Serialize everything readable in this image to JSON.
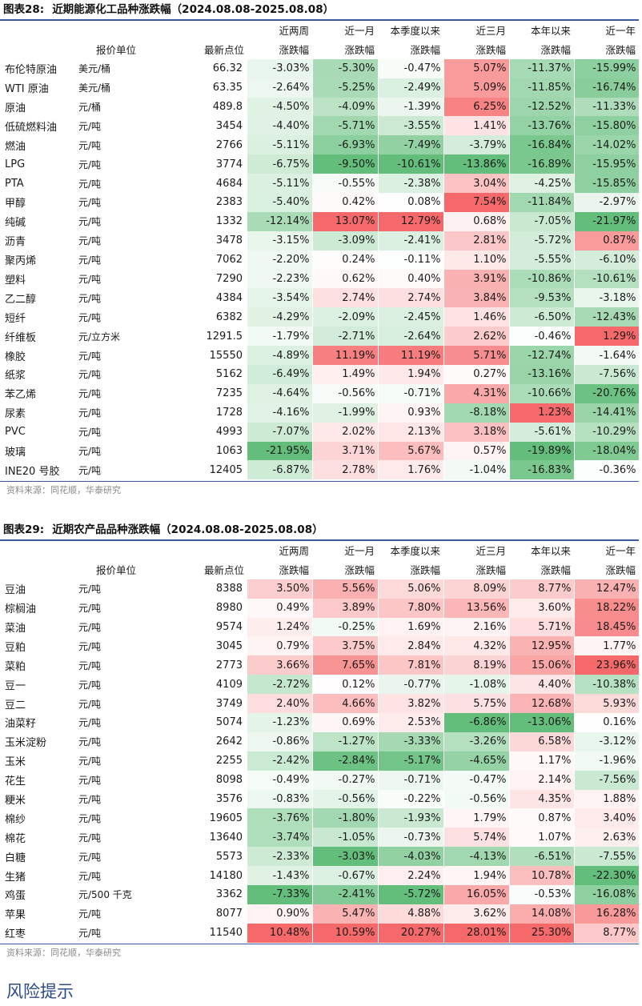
{
  "tables": [
    {
      "title": {
        "label": "图表28:",
        "text": "近期能源化工品种涨跌幅（2024.08.08-2025.08.08）"
      },
      "headers": {
        "row1": [
          "近两周",
          "近一月",
          "本季度以来",
          "近三月",
          "本年以来",
          "近一年"
        ],
        "row2": [
          "涨跌幅",
          "涨跌幅",
          "涨跌幅",
          "涨跌幅",
          "涨跌幅",
          "涨跌幅"
        ],
        "unit": "报价单位",
        "price": "最新点位"
      },
      "rows": [
        {
          "name": "布伦特原油",
          "unit": "美元/桶",
          "price": "66.32",
          "values": [
            "-3.03%",
            "-5.30%",
            "-0.47%",
            "5.07%",
            "-11.37%",
            "-15.99%"
          ]
        },
        {
          "name": "WTI 原油",
          "unit": "美元/桶",
          "price": "63.35",
          "values": [
            "-2.64%",
            "-5.25%",
            "-2.49%",
            "5.09%",
            "-11.85%",
            "-16.74%"
          ]
        },
        {
          "name": "原油",
          "unit": "元/桶",
          "price": "489.8",
          "values": [
            "-4.50%",
            "-4.09%",
            "-1.39%",
            "6.25%",
            "-12.52%",
            "-11.33%"
          ]
        },
        {
          "name": "低硫燃料油",
          "unit": "元/吨",
          "price": "3454",
          "values": [
            "-4.40%",
            "-5.71%",
            "-3.55%",
            "1.41%",
            "-13.76%",
            "-15.80%"
          ]
        },
        {
          "name": "燃油",
          "unit": "元/吨",
          "price": "2766",
          "values": [
            "-5.11%",
            "-6.93%",
            "-7.49%",
            "-3.79%",
            "-16.84%",
            "-14.02%"
          ]
        },
        {
          "name": "LPG",
          "unit": "元/吨",
          "price": "3774",
          "values": [
            "-6.75%",
            "-9.50%",
            "-10.61%",
            "-13.86%",
            "-16.89%",
            "-15.95%"
          ]
        },
        {
          "name": "PTA",
          "unit": "元/吨",
          "price": "4684",
          "values": [
            "-5.11%",
            "-0.55%",
            "-2.38%",
            "3.04%",
            "-4.25%",
            "-15.85%"
          ]
        },
        {
          "name": "甲醇",
          "unit": "元/吨",
          "price": "2383",
          "values": [
            "-5.40%",
            "0.42%",
            "0.08%",
            "7.54%",
            "-11.84%",
            "-2.97%"
          ]
        },
        {
          "name": "纯碱",
          "unit": "元/吨",
          "price": "1332",
          "values": [
            "-12.14%",
            "13.07%",
            "12.79%",
            "0.68%",
            "-7.05%",
            "-21.97%"
          ]
        },
        {
          "name": "沥青",
          "unit": "元/吨",
          "price": "3478",
          "values": [
            "-3.15%",
            "-3.09%",
            "-2.41%",
            "2.81%",
            "-5.72%",
            "0.87%"
          ]
        },
        {
          "name": "聚丙烯",
          "unit": "元/吨",
          "price": "7062",
          "values": [
            "-2.20%",
            "0.24%",
            "-0.11%",
            "1.10%",
            "-5.55%",
            "-6.10%"
          ]
        },
        {
          "name": "塑料",
          "unit": "元/吨",
          "price": "7290",
          "values": [
            "-2.23%",
            "0.62%",
            "0.40%",
            "3.91%",
            "-10.86%",
            "-10.61%"
          ]
        },
        {
          "name": "乙二醇",
          "unit": "元/吨",
          "price": "4384",
          "values": [
            "-3.54%",
            "2.74%",
            "2.74%",
            "3.84%",
            "-9.53%",
            "-3.18%"
          ]
        },
        {
          "name": "短纤",
          "unit": "元/吨",
          "price": "6382",
          "values": [
            "-4.29%",
            "-2.09%",
            "-2.45%",
            "1.46%",
            "-6.50%",
            "-12.43%"
          ]
        },
        {
          "name": "纤维板",
          "unit": "元/立方米",
          "price": "1291.5",
          "values": [
            "-1.79%",
            "-2.71%",
            "-2.64%",
            "2.62%",
            "-0.46%",
            "1.29%"
          ]
        },
        {
          "name": "橡胶",
          "unit": "元/吨",
          "price": "15550",
          "values": [
            "-4.89%",
            "11.19%",
            "11.19%",
            "5.71%",
            "-12.74%",
            "-1.64%"
          ]
        },
        {
          "name": "纸浆",
          "unit": "元/吨",
          "price": "5162",
          "values": [
            "-6.49%",
            "1.49%",
            "1.94%",
            "0.27%",
            "-13.16%",
            "-7.56%"
          ]
        },
        {
          "name": "苯乙烯",
          "unit": "元/吨",
          "price": "7235",
          "values": [
            "-4.64%",
            "-0.56%",
            "-0.71%",
            "4.31%",
            "-10.66%",
            "-20.76%"
          ]
        },
        {
          "name": "尿素",
          "unit": "元/吨",
          "price": "1728",
          "values": [
            "-4.16%",
            "-1.99%",
            "0.93%",
            "-8.18%",
            "1.23%",
            "-14.41%"
          ]
        },
        {
          "name": "PVC",
          "unit": "元/吨",
          "price": "4993",
          "values": [
            "-7.07%",
            "2.02%",
            "2.13%",
            "3.18%",
            "-5.61%",
            "-10.29%"
          ]
        },
        {
          "name": "玻璃",
          "unit": "元/吨",
          "price": "1063",
          "values": [
            "-21.95%",
            "3.71%",
            "5.67%",
            "0.57%",
            "-19.89%",
            "-18.04%"
          ]
        },
        {
          "name": "INE20 号胶",
          "unit": "元/吨",
          "price": "12405",
          "values": [
            "-6.87%",
            "2.78%",
            "1.76%",
            "-1.04%",
            "-16.83%",
            "-0.36%"
          ]
        }
      ],
      "source": "资料来源：同花顺，华泰研究"
    },
    {
      "title": {
        "label": "图表29:",
        "text": "近期农产品品种涨跌幅（2024.08.08-2025.08.08）"
      },
      "headers": {
        "row1": [
          "近两周",
          "近一月",
          "本季度以来",
          "近三月",
          "本年以来",
          "近一年"
        ],
        "row2": [
          "涨跌幅",
          "涨跌幅",
          "涨跌幅",
          "涨跌幅",
          "涨跌幅",
          "涨跌幅"
        ],
        "unit": "报价单位",
        "price": "最新点位"
      },
      "rows": [
        {
          "name": "豆油",
          "unit": "元/吨",
          "price": "8388",
          "values": [
            "3.50%",
            "5.56%",
            "5.06%",
            "8.09%",
            "8.77%",
            "12.47%"
          ]
        },
        {
          "name": "棕榈油",
          "unit": "元/吨",
          "price": "8980",
          "values": [
            "0.49%",
            "3.89%",
            "7.80%",
            "13.56%",
            "3.60%",
            "18.22%"
          ]
        },
        {
          "name": "菜油",
          "unit": "元/吨",
          "price": "9574",
          "values": [
            "1.24%",
            "-0.25%",
            "1.69%",
            "2.16%",
            "5.71%",
            "18.45%"
          ]
        },
        {
          "name": "豆粕",
          "unit": "元/吨",
          "price": "3045",
          "values": [
            "0.79%",
            "3.75%",
            "2.84%",
            "4.32%",
            "12.95%",
            "1.77%"
          ]
        },
        {
          "name": "菜粕",
          "unit": "元/吨",
          "price": "2773",
          "values": [
            "3.66%",
            "7.65%",
            "7.81%",
            "8.19%",
            "15.06%",
            "23.96%"
          ]
        },
        {
          "name": "豆一",
          "unit": "元/吨",
          "price": "4109",
          "values": [
            "-2.72%",
            "0.12%",
            "-0.77%",
            "-1.08%",
            "4.40%",
            "-10.38%"
          ]
        },
        {
          "name": "豆二",
          "unit": "元/吨",
          "price": "3749",
          "values": [
            "2.40%",
            "4.66%",
            "3.82%",
            "5.75%",
            "12.68%",
            "5.93%"
          ]
        },
        {
          "name": "油菜籽",
          "unit": "元/吨",
          "price": "5074",
          "values": [
            "-1.23%",
            "0.69%",
            "2.53%",
            "-6.86%",
            "-13.06%",
            "0.16%"
          ]
        },
        {
          "name": "玉米淀粉",
          "unit": "元/吨",
          "price": "2642",
          "values": [
            "-0.86%",
            "-1.27%",
            "-3.33%",
            "-3.26%",
            "6.58%",
            "-3.12%"
          ]
        },
        {
          "name": "玉米",
          "unit": "元/吨",
          "price": "2255",
          "values": [
            "-2.42%",
            "-2.84%",
            "-5.17%",
            "-4.65%",
            "1.17%",
            "-1.96%"
          ]
        },
        {
          "name": "花生",
          "unit": "元/吨",
          "price": "8098",
          "values": [
            "-0.49%",
            "-0.27%",
            "-0.71%",
            "-0.47%",
            "2.14%",
            "-7.56%"
          ]
        },
        {
          "name": "粳米",
          "unit": "元/吨",
          "price": "3576",
          "values": [
            "-0.83%",
            "-0.56%",
            "-0.22%",
            "-0.56%",
            "4.35%",
            "1.88%"
          ]
        },
        {
          "name": "棉纱",
          "unit": "元/吨",
          "price": "19605",
          "values": [
            "-3.76%",
            "-1.80%",
            "-1.93%",
            "1.79%",
            "0.87%",
            "3.40%"
          ]
        },
        {
          "name": "棉花",
          "unit": "元/吨",
          "price": "13640",
          "values": [
            "-3.74%",
            "-1.05%",
            "-0.73%",
            "5.74%",
            "1.07%",
            "2.63%"
          ]
        },
        {
          "name": "白糖",
          "unit": "元/吨",
          "price": "5573",
          "values": [
            "-2.33%",
            "-3.03%",
            "-4.03%",
            "-4.13%",
            "-6.51%",
            "-7.55%"
          ]
        },
        {
          "name": "生猪",
          "unit": "元/吨",
          "price": "14180",
          "values": [
            "-1.43%",
            "-0.67%",
            "2.24%",
            "1.94%",
            "10.78%",
            "-22.30%"
          ]
        },
        {
          "name": "鸡蛋",
          "unit": "元/500 千克",
          "price": "3362",
          "values": [
            "-7.33%",
            "-2.41%",
            "-5.72%",
            "16.05%",
            "-0.53%",
            "-16.08%"
          ]
        },
        {
          "name": "苹果",
          "unit": "元/吨",
          "price": "8077",
          "values": [
            "0.90%",
            "5.47%",
            "4.88%",
            "3.62%",
            "14.08%",
            "16.28%"
          ]
        },
        {
          "name": "红枣",
          "unit": "元/吨",
          "price": "11540",
          "values": [
            "10.48%",
            "10.59%",
            "20.27%",
            "28.01%",
            "25.30%",
            "8.77%"
          ]
        }
      ],
      "source": "资料来源：同花顺，华泰研究"
    }
  ],
  "risk_heading": "风险提示"
}
